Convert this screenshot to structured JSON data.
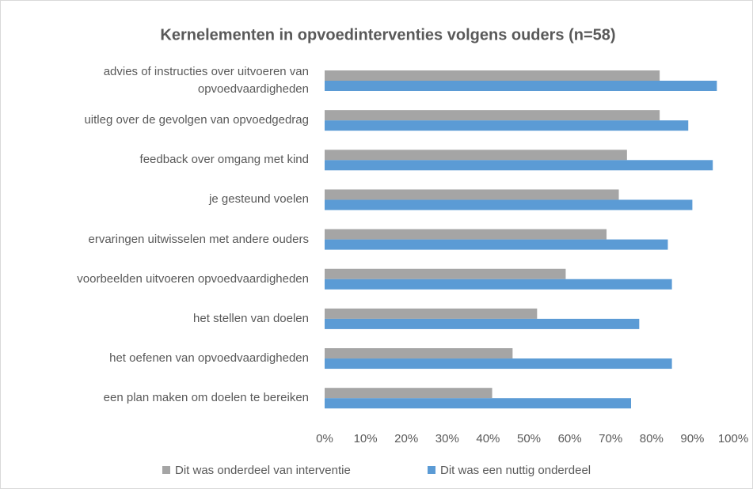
{
  "chart_data": {
    "type": "bar",
    "orientation": "horizontal",
    "title": "Kernelementen in opvoedinterventies volgens ouders (n=58)",
    "categories": [
      "advies of instructies over uitvoeren van opvoedvaardigheden",
      "uitleg over de gevolgen van opvoedgedrag",
      "feedback over omgang met kind",
      "je gesteund voelen",
      "ervaringen uitwisselen met andere ouders",
      "voorbeelden uitvoeren opvoedvaardigheden",
      "het stellen van doelen",
      "het oefenen van opvoedvaardigheden",
      "een plan maken om doelen te bereiken"
    ],
    "series": [
      {
        "name": "Dit was onderdeel van interventie",
        "color": "#a5a5a5",
        "values": [
          82,
          82,
          74,
          72,
          69,
          59,
          52,
          46,
          41
        ]
      },
      {
        "name": "Dit was een nuttig onderdeel",
        "color": "#5b9bd5",
        "values": [
          96,
          89,
          95,
          90,
          84,
          85,
          77,
          85,
          75
        ]
      }
    ],
    "xlim": [
      0,
      100
    ],
    "xticks": [
      {
        "value": 0,
        "label": "0%"
      },
      {
        "value": 10,
        "label": "10%"
      },
      {
        "value": 20,
        "label": "20%"
      },
      {
        "value": 30,
        "label": "30%"
      },
      {
        "value": 40,
        "label": "40%"
      },
      {
        "value": 50,
        "label": "50%"
      },
      {
        "value": 60,
        "label": "60%"
      },
      {
        "value": 70,
        "label": "70%"
      },
      {
        "value": 80,
        "label": "80%"
      },
      {
        "value": 90,
        "label": "90%"
      },
      {
        "value": 100,
        "label": "100%"
      }
    ],
    "grid": false,
    "legend": "bottom"
  }
}
